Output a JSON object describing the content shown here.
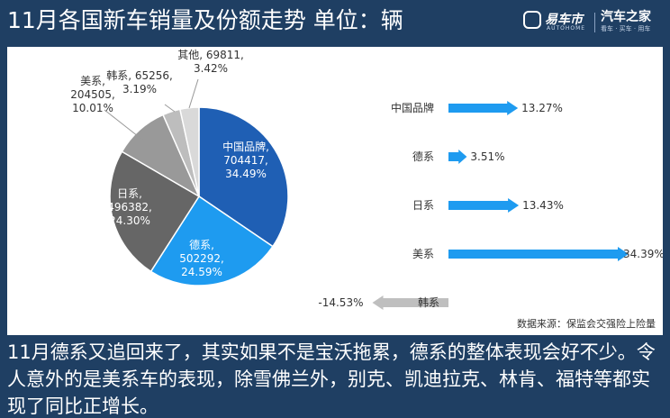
{
  "header": {
    "title": "11月各国新车销量及份额走势 单位：辆",
    "logo_primary": "易车市",
    "logo_primary_sub": "AUTOHOME",
    "logo_secondary": "汽车之家",
    "logo_secondary_sub": "看车 · 买车 · 用车"
  },
  "chart_data": [
    {
      "type": "pie",
      "title": "",
      "slices": [
        {
          "label": "中国品牌",
          "value": 704417,
          "percent": "34.49%",
          "color": "#1f5fb4"
        },
        {
          "label": "德系",
          "value": 502292,
          "percent": "24.59%",
          "color": "#1e9bf0"
        },
        {
          "label": "日系",
          "value": 496382,
          "percent": "24.30%",
          "color": "#666666"
        },
        {
          "label": "美系",
          "value": 204505,
          "percent": "10.01%",
          "color": "#999999"
        },
        {
          "label": "韩系",
          "value": 65256,
          "percent": "3.19%",
          "color": "#bdbdbd"
        },
        {
          "label": "其他",
          "value": 69811,
          "percent": "3.42%",
          "color": "#d9d9d9"
        }
      ]
    },
    {
      "type": "bar",
      "orientation": "horizontal",
      "title": "",
      "categories": [
        "中国品牌",
        "德系",
        "日系",
        "美系",
        "韩系"
      ],
      "values": [
        13.27,
        3.51,
        13.43,
        34.39,
        -14.53
      ],
      "labels": [
        "13.27%",
        "3.51%",
        "13.43%",
        "34.39%",
        "-14.53%"
      ],
      "positive_color": "#1e9bf0",
      "negative_color": "#bfbfbf"
    }
  ],
  "source": "数据来源：保监会交强险上险量",
  "caption": "11月德系又追回来了，其实如果不是宝沃拖累，德系的整体表现会好不少。令人意外的是美系车的表现，除雪佛兰外，别克、凯迪拉克、林肯、福特等都实现了同比正增长。"
}
